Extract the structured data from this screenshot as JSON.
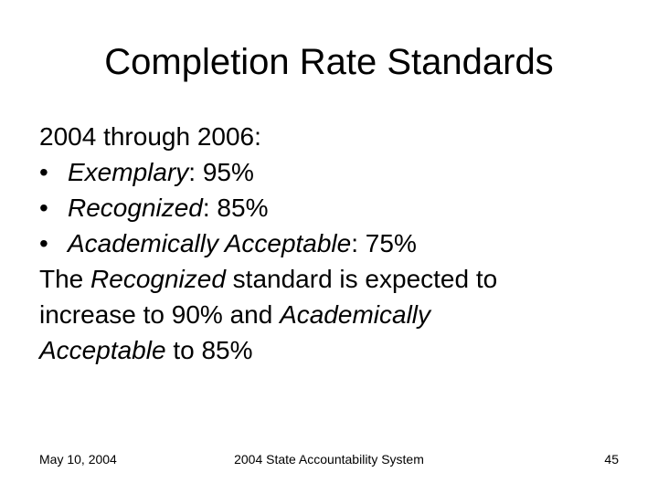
{
  "slide": {
    "title": "Completion Rate Standards",
    "intro": "2004 through 2006:",
    "bullet_glyph": "•",
    "bullets": [
      {
        "label": "Exemplary",
        "value": ":  95%"
      },
      {
        "label": "Recognized",
        "value": ":  85%"
      },
      {
        "label": "Academically Acceptable",
        "value": ":  75%"
      }
    ],
    "paragraph": {
      "p1": "The ",
      "e1": "Recognized",
      "p2": " standard is expected to",
      "p3": "increase to 90% and ",
      "e2": "Academically",
      "e3": "Acceptable",
      "p4": " to 85%"
    }
  },
  "footer": {
    "date": "May 10, 2004",
    "center": "2004 State Accountability System",
    "page_number": "45"
  }
}
